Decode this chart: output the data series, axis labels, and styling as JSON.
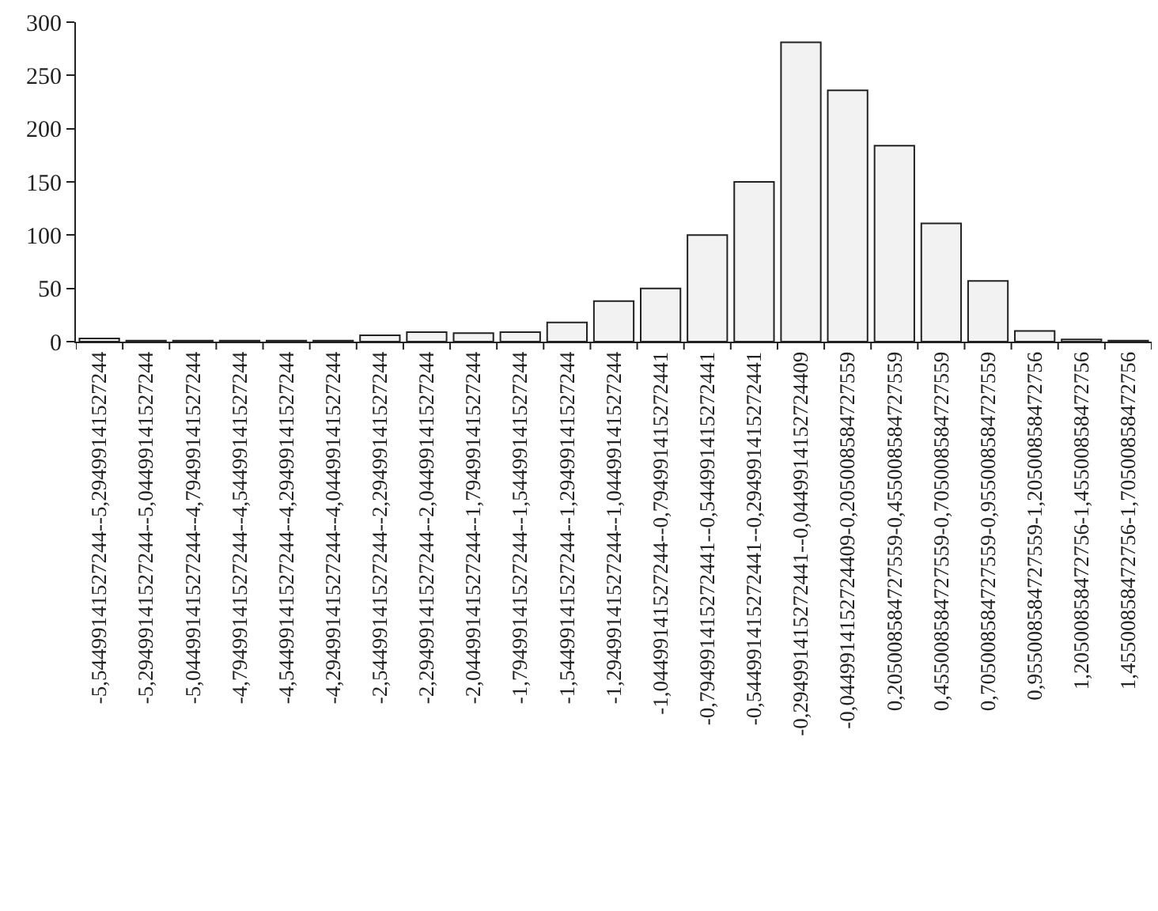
{
  "chart_data": {
    "type": "bar",
    "categories": [
      "-5,54499141527244--5,29499141527244",
      "-5,29499141527244--5,04499141527244",
      "-5,04499141527244--4,79499141527244",
      "-4,79499141527244--4,54499141527244",
      "-4,54499141527244--4,29499141527244",
      "-4,29499141527244--4,04499141527244",
      "-2,54499141527244--2,29499141527244",
      "-2,29499141527244--2,04499141527244",
      "-2,04499141527244--1,79499141527244",
      "-1,79499141527244--1,54499141527244",
      "-1,54499141527244--1,29499141527244",
      "-1,29499141527244--1,04499141527244",
      "-1,04499141527244--0,794991415272441",
      "-0,794991415272441--0,544991415272441",
      "-0,544991415272441--0,294991415272441",
      "-0,294991415272441--0,0449914152724409",
      "-0,0449914152724409-0,205008584727559",
      "0,205008584727559-0,455008584727559",
      "0,455008584727559-0,705008584727559",
      "0,705008584727559-0,955008584727559",
      "0,955008584727559-1,20500858472756",
      "1,20500858472756-1,45500858472756",
      "1,45500858472756-1,70500858472756"
    ],
    "values": [
      3,
      1,
      1,
      1,
      1,
      1,
      6,
      9,
      8,
      9,
      18,
      38,
      50,
      100,
      150,
      281,
      236,
      184,
      111,
      57,
      10,
      2,
      1
    ],
    "color": "#f2f2f2",
    "ylim": [
      0,
      300
    ],
    "yticks": [
      0,
      50,
      100,
      150,
      200,
      250,
      300
    ],
    "grid": false,
    "legend": false
  }
}
